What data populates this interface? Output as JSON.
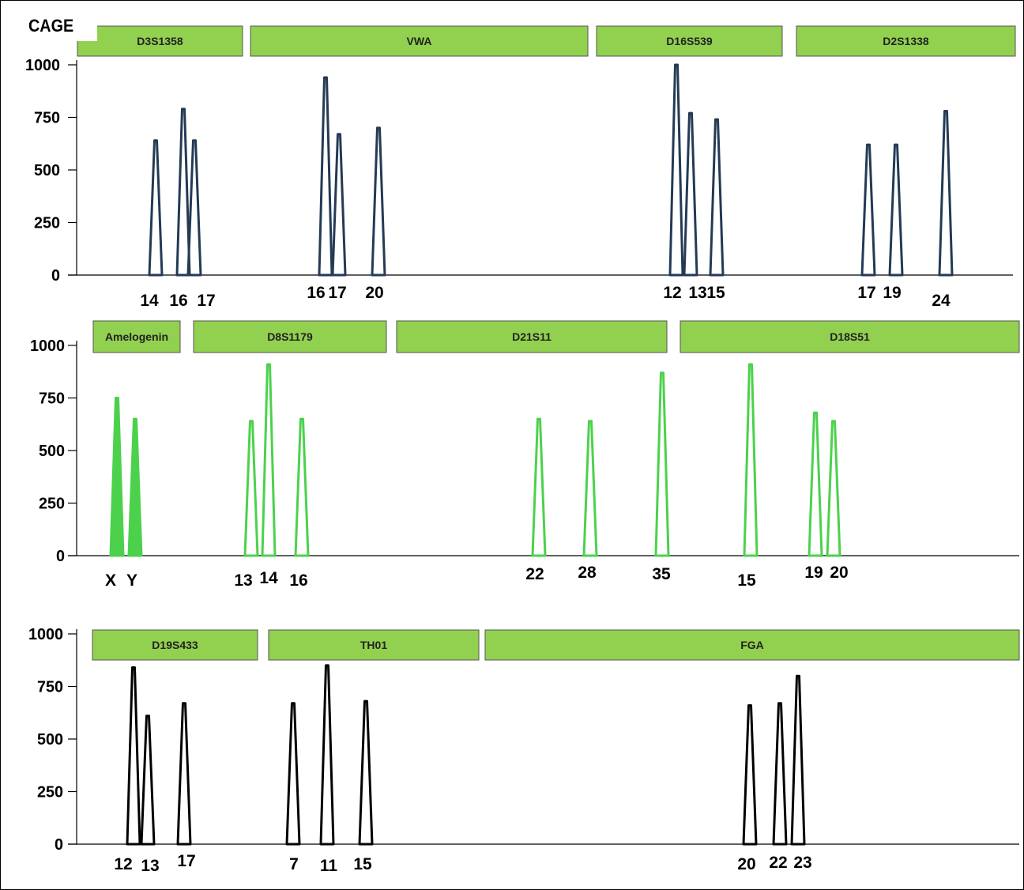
{
  "sample_label": "CAGE",
  "chart_data": [
    {
      "type": "line",
      "title": "",
      "ylim": [
        0,
        1000
      ],
      "yticks": [
        0,
        250,
        500,
        750,
        1000
      ],
      "color": "#243a55",
      "filled": false,
      "loci": [
        {
          "name": "D3S1358",
          "peaks": [
            {
              "allele": "14",
              "height": 640
            },
            {
              "allele": "16",
              "height": 790
            },
            {
              "allele": "17",
              "height": 640
            }
          ]
        },
        {
          "name": "VWA",
          "peaks": [
            {
              "allele": "16",
              "height": 940
            },
            {
              "allele": "17",
              "height": 670
            },
            {
              "allele": "20",
              "height": 700
            }
          ]
        },
        {
          "name": "D16S539",
          "peaks": [
            {
              "allele": "12",
              "height": 1000
            },
            {
              "allele": "13",
              "height": 770
            },
            {
              "allele": "15",
              "height": 740
            }
          ]
        },
        {
          "name": "D2S1338",
          "peaks": [
            {
              "allele": "17",
              "height": 620
            },
            {
              "allele": "19",
              "height": 620
            },
            {
              "allele": "24",
              "height": 780
            }
          ]
        }
      ]
    },
    {
      "type": "line",
      "title": "",
      "ylim": [
        0,
        1000
      ],
      "yticks": [
        0,
        250,
        500,
        750,
        1000
      ],
      "color": "#4cd14c",
      "filled": false,
      "loci": [
        {
          "name": "Amelogenin",
          "filled": true,
          "peaks": [
            {
              "allele": "X",
              "height": 750
            },
            {
              "allele": "Y",
              "height": 650
            }
          ]
        },
        {
          "name": "D8S1179",
          "peaks": [
            {
              "allele": "13",
              "height": 640
            },
            {
              "allele": "14",
              "height": 910
            },
            {
              "allele": "16",
              "height": 650
            }
          ]
        },
        {
          "name": "D21S11",
          "peaks": [
            {
              "allele": "22",
              "height": 650
            },
            {
              "allele": "28",
              "height": 640
            },
            {
              "allele": "35",
              "height": 870
            }
          ]
        },
        {
          "name": "D18S51",
          "peaks": [
            {
              "allele": "15",
              "height": 910
            },
            {
              "allele": "19",
              "height": 680
            },
            {
              "allele": "20",
              "height": 640
            }
          ]
        }
      ]
    },
    {
      "type": "line",
      "title": "",
      "ylim": [
        0,
        1000
      ],
      "yticks": [
        0,
        250,
        500,
        750,
        1000
      ],
      "color": "#000000",
      "filled": false,
      "loci": [
        {
          "name": "D19S433",
          "peaks": [
            {
              "allele": "12",
              "height": 840
            },
            {
              "allele": "13",
              "height": 610
            },
            {
              "allele": "17",
              "height": 670
            }
          ]
        },
        {
          "name": "TH01",
          "peaks": [
            {
              "allele": "7",
              "height": 670
            },
            {
              "allele": "11",
              "height": 850
            },
            {
              "allele": "15",
              "height": 680
            }
          ]
        },
        {
          "name": "FGA",
          "peaks": [
            {
              "allele": "20",
              "height": 660
            },
            {
              "allele": "22",
              "height": 670
            },
            {
              "allele": "23",
              "height": 800
            }
          ]
        }
      ]
    }
  ],
  "colors": {
    "locus_box_fill": "#92d050",
    "locus_box_stroke": "#555555",
    "axis": "#000000"
  }
}
